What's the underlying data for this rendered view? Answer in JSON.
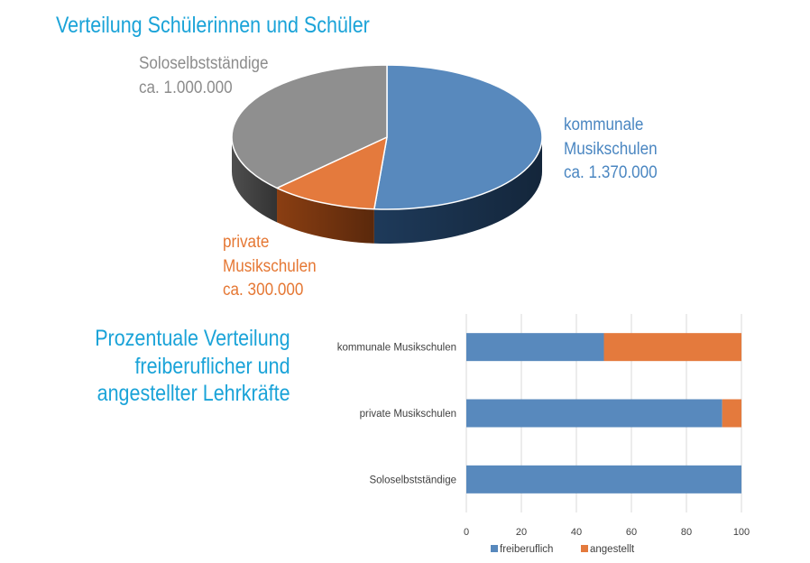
{
  "chart_data": [
    {
      "type": "pie",
      "title": "Verteilung Schülerinnen und Schüler",
      "slices": [
        {
          "key": "kommunal",
          "label_lines": [
            "kommunale",
            "Musikschulen",
            "ca. 1.370.000"
          ],
          "value": 1370000,
          "color": "#5889bd",
          "side_color": "#1e3a5a"
        },
        {
          "key": "privat",
          "label_lines": [
            "private",
            "Musikschulen",
            "ca. 300.000"
          ],
          "value": 300000,
          "color": "#e47a3d",
          "side_color": "#8a3e12"
        },
        {
          "key": "solo",
          "label_lines": [
            "Soloselbstständige",
            "ca. 1.000.000"
          ],
          "value": 1000000,
          "color": "#8f8f8f",
          "side_color": "#4e4e4e"
        }
      ]
    },
    {
      "type": "bar",
      "orientation": "horizontal",
      "stacked": true,
      "title_lines": [
        "Prozentuale Verteilung",
        "freiberuflicher und",
        "angestellter Lehrkräfte"
      ],
      "categories": [
        "kommunale Musikschulen",
        "private Musikschulen",
        "Soloselbstständige"
      ],
      "series": [
        {
          "name": "freiberuflich",
          "values": [
            50,
            93,
            100
          ],
          "color": "#5889bd"
        },
        {
          "name": "angestellt",
          "values": [
            50,
            7,
            0
          ],
          "color": "#e47a3d"
        }
      ],
      "xlim": [
        0,
        100
      ],
      "xticks": [
        0,
        20,
        40,
        60,
        80,
        100
      ],
      "grid": true,
      "legend": "bottom"
    }
  ]
}
